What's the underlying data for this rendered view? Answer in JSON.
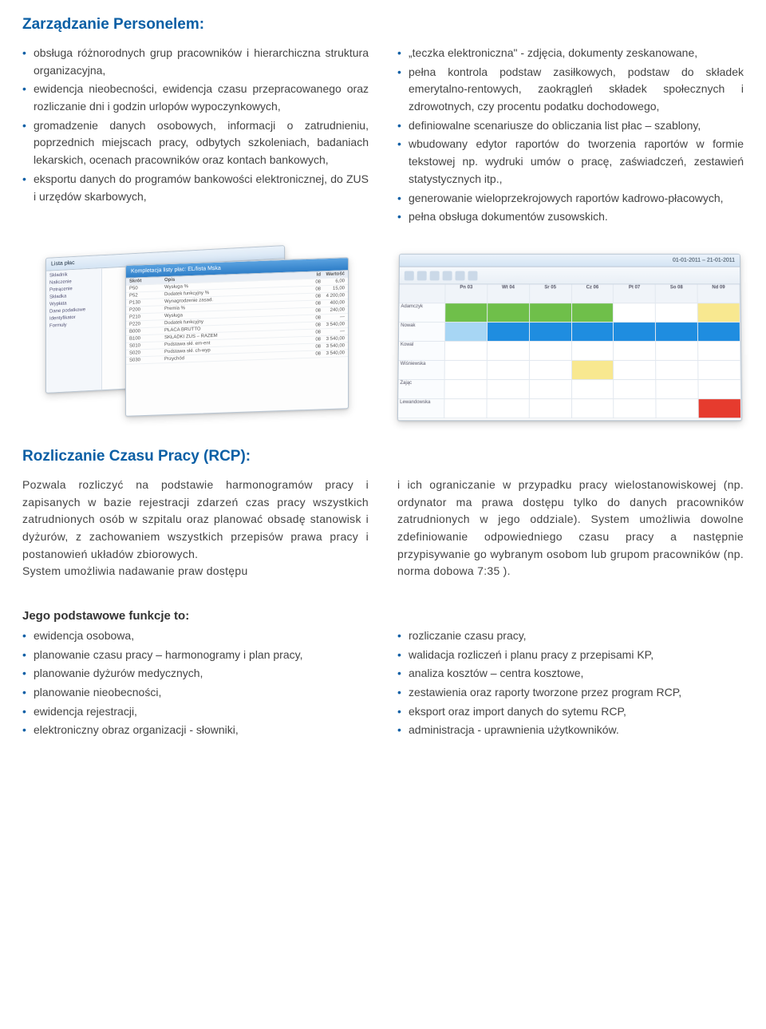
{
  "section1": {
    "title": "Zarządzanie Personelem:",
    "left_bullets": [
      "obsługa różnorodnych grup pracowników i hierarchiczna struktura organizacyjna,",
      "ewidencja nieobecności, ewidencja czasu przepracowanego oraz rozliczanie dni i godzin urlopów wypoczynkowych,",
      "gromadzenie danych osobowych, informacji o zatrudnieniu, poprzednich miejscach pracy, odbytych szkoleniach, badaniach lekarskich, ocenach pracowników oraz kontach bankowych,",
      "eksportu danych do programów bankowości elektronicznej, do ZUS i urzędów skarbowych,"
    ],
    "right_bullets": [
      "„teczka elektroniczna\" - zdjęcia, dokumenty zeskanowane,",
      "pełna kontrola podstaw zasiłkowych, podstaw do składek emerytalno-rentowych, zaokrągleń składek społecznych i zdrowotnych, czy procentu podatku dochodowego,",
      "definiowalne scenariusze do obliczania list płac – szablony,",
      "wbudowany edytor raportów do tworzenia raportów w formie tekstowej np. wydruki umów o pracę, zaświadczeń, zestawień statystycznych itp.,",
      "generowanie wieloprzekrojowych raportów kadrowo-płacowych,",
      "pełna obsługa dokumentów zusowskich."
    ]
  },
  "figure_payroll": {
    "title_back": "Lista płac",
    "title_front": "Kompletacja listy płac: EL/lista Mska",
    "side_labels": [
      "Składnik",
      "Naliczenie",
      "Potrącenie",
      "Składka",
      "Wypłata",
      "Dane podatkowe",
      "Identyfikator",
      "Formuły"
    ],
    "header": [
      "Skrót",
      "Opis",
      "Id",
      "Wartość"
    ],
    "rows": [
      [
        "P50",
        "Wysługa %",
        "08",
        "6,00"
      ],
      [
        "P52",
        "Dodatek funkcyjny %",
        "08",
        "15,00"
      ],
      [
        "P130",
        "Wynagrodzenie zasad.",
        "08",
        "4 200,00"
      ],
      [
        "P200",
        "Premia %",
        "08",
        "400,00"
      ],
      [
        "P210",
        "Wysługa",
        "08",
        "240,00"
      ],
      [
        "P220",
        "Dodatek funkcyjny",
        "08",
        "—"
      ],
      [
        "B000",
        "PŁACA BRUTTO",
        "08",
        "3 540,00"
      ],
      [
        "B100",
        "SKŁADKI ZUS – RAZEM",
        "08",
        "—"
      ],
      [
        "S010",
        "Podstawa skł. em-ent",
        "08",
        "3 540,00"
      ],
      [
        "S020",
        "Podstawa skł. ch-wyp",
        "08",
        "3 540,00"
      ],
      [
        "S030",
        "Przychód",
        "08",
        "3 540,00"
      ]
    ]
  },
  "figure_schedule": {
    "date_range": "01-01-2011 – 21-01-2011",
    "day_headers": [
      "Pn 03",
      "Wt 04",
      "Śr 05",
      "Cz 06",
      "Pt 07",
      "So 08",
      "Nd 09"
    ],
    "rows": [
      {
        "name": "Adamczyk",
        "cells": [
          "green",
          "green",
          "green",
          "green",
          "blank",
          "blank",
          "yellow"
        ]
      },
      {
        "name": "Nowak",
        "cells": [
          "lblue",
          "blue",
          "blue",
          "blue",
          "blue",
          "blue",
          "blue"
        ]
      },
      {
        "name": "Kowal",
        "cells": [
          "blank",
          "blank",
          "blank",
          "blank",
          "blank",
          "blank",
          "blank"
        ]
      },
      {
        "name": "Wiśniewska",
        "cells": [
          "blank",
          "blank",
          "blank",
          "yellow",
          "blank",
          "blank",
          "blank"
        ]
      },
      {
        "name": "Zając",
        "cells": [
          "blank",
          "blank",
          "blank",
          "blank",
          "blank",
          "blank",
          "blank"
        ]
      },
      {
        "name": "Lewandowska",
        "cells": [
          "blank",
          "blank",
          "blank",
          "blank",
          "blank",
          "blank",
          "red"
        ]
      }
    ],
    "colors": {
      "green": "#6fbf4a",
      "blue": "#1f8de0",
      "lblue": "#a7d6f4",
      "yellow": "#f8e890",
      "red": "#e63b2e",
      "blank": "#ffffff"
    }
  },
  "section2": {
    "title": "Rozliczanie Czasu Pracy (RCP):",
    "left_para": "Pozwala rozliczyć na podstawie harmonogramów pracy i zapisanych w bazie rejestracji zdarzeń czas pracy wszystkich zatrudnionych osób w szpitalu oraz planować obsadę stanowisk i dyżurów, z zachowaniem wszystkich przepisów prawa pracy i postanowień układów zbiorowych.",
    "left_para2": "System umożliwia nadawanie praw dostępu",
    "right_para": "i ich ograniczanie w przypadku pracy wielostanowiskowej (np. ordynator ma prawa dostępu tylko do danych pracowników zatrudnionych w jego oddziale). System umożliwia dowolne zdefiniowanie odpowiedniego czasu pracy a następnie przypisywanie go wybranym osobom lub grupom pracowników (np. norma dobowa 7:35 )."
  },
  "section3": {
    "heading": "Jego podstawowe funkcje to:",
    "left_bullets": [
      "ewidencja osobowa,",
      "planowanie czasu pracy – harmonogramy i plan pracy,",
      "planowanie dyżurów medycznych,",
      "planowanie nieobecności,",
      "ewidencja rejestracji,",
      "elektroniczny obraz organizacji - słowniki,"
    ],
    "right_bullets": [
      "rozliczanie czasu pracy,",
      "walidacja rozliczeń i planu pracy z przepisami KP,",
      "analiza kosztów – centra kosztowe,",
      "zestawienia oraz raporty tworzone przez program RCP,",
      "eksport oraz import danych do sytemu RCP,",
      "administracja - uprawnienia użytkowników."
    ]
  }
}
